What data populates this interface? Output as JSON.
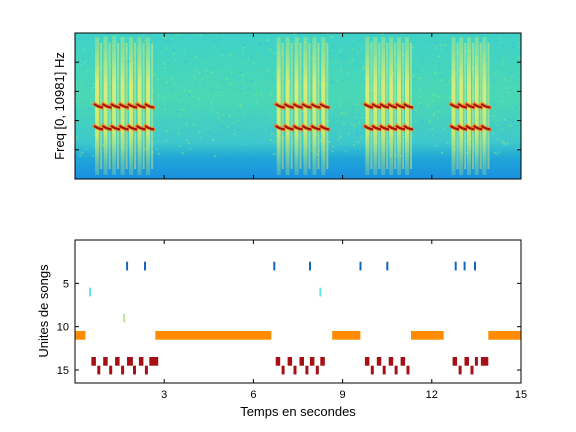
{
  "chart_data": [
    {
      "type": "heatmap",
      "title": "",
      "xlabel": "",
      "ylabel": "Freq [0, 10981] Hz",
      "yticks": [],
      "xticks": [],
      "xlim": [
        0,
        15
      ],
      "colormap": "jet",
      "content": "spectrogram",
      "call_groups": [
        {
          "start": 0.6,
          "end": 2.6,
          "count": 7
        },
        {
          "start": 6.7,
          "end": 8.5,
          "count": 6
        },
        {
          "start": 9.7,
          "end": 11.3,
          "count": 6
        },
        {
          "start": 12.6,
          "end": 13.9,
          "count": 5
        }
      ],
      "bands": [
        {
          "name": "harmonic-upper",
          "freq_fraction": 0.5
        },
        {
          "name": "harmonic-lower",
          "freq_fraction": 0.35
        }
      ]
    },
    {
      "type": "scatter",
      "title": "",
      "xlabel": "Temps en secondes",
      "ylabel": "Unites de songs",
      "xlim": [
        0,
        15
      ],
      "ylim": [
        16.5,
        0
      ],
      "xticks": [
        "3",
        "6",
        "9",
        "12",
        "15"
      ],
      "yticks": [
        "5",
        "10",
        "15"
      ],
      "series": [
        {
          "color": "#1565c0",
          "segments": [
            {
              "unit": 3,
              "start": 1.72,
              "end": 1.78
            },
            {
              "unit": 3,
              "start": 2.32,
              "end": 2.38
            },
            {
              "unit": 3,
              "start": 6.67,
              "end": 6.73
            },
            {
              "unit": 3,
              "start": 7.87,
              "end": 7.93
            },
            {
              "unit": 3,
              "start": 9.57,
              "end": 9.63
            },
            {
              "unit": 3,
              "start": 10.47,
              "end": 10.53
            },
            {
              "unit": 3,
              "start": 12.77,
              "end": 12.83
            },
            {
              "unit": 3,
              "start": 13.07,
              "end": 13.13
            },
            {
              "unit": 3,
              "start": 13.42,
              "end": 13.48
            }
          ]
        },
        {
          "color": "#5fe6e6",
          "segments": [
            {
              "unit": 6,
              "start": 0.47,
              "end": 0.53
            },
            {
              "unit": 6,
              "start": 8.22,
              "end": 8.28
            }
          ]
        },
        {
          "color": "#b8e69a",
          "segments": [
            {
              "unit": 9,
              "start": 1.62,
              "end": 1.68
            }
          ]
        },
        {
          "color": "#ff8c00",
          "segments": [
            {
              "unit": 11,
              "start": 0.0,
              "end": 0.35
            },
            {
              "unit": 11,
              "start": 2.7,
              "end": 6.6
            },
            {
              "unit": 11,
              "start": 8.65,
              "end": 9.6
            },
            {
              "unit": 11,
              "start": 11.3,
              "end": 12.4
            },
            {
              "unit": 11,
              "start": 13.9,
              "end": 15.0
            }
          ]
        },
        {
          "color": "#a50f15",
          "segments": [
            {
              "unit": 14,
              "start": 0.55,
              "end": 0.7
            },
            {
              "unit": 14,
              "start": 0.95,
              "end": 1.1
            },
            {
              "unit": 14,
              "start": 1.35,
              "end": 1.5
            },
            {
              "unit": 14,
              "start": 1.75,
              "end": 1.95
            },
            {
              "unit": 14,
              "start": 2.15,
              "end": 2.3
            },
            {
              "unit": 14,
              "start": 2.5,
              "end": 2.8
            },
            {
              "unit": 15,
              "start": 0.75,
              "end": 0.85
            },
            {
              "unit": 15,
              "start": 1.15,
              "end": 1.25
            },
            {
              "unit": 15,
              "start": 1.55,
              "end": 1.65
            },
            {
              "unit": 15,
              "start": 1.95,
              "end": 2.05
            },
            {
              "unit": 15,
              "start": 2.35,
              "end": 2.45
            },
            {
              "unit": 14,
              "start": 6.75,
              "end": 6.9
            },
            {
              "unit": 14,
              "start": 7.15,
              "end": 7.3
            },
            {
              "unit": 14,
              "start": 7.55,
              "end": 7.7
            },
            {
              "unit": 14,
              "start": 7.9,
              "end": 8.05
            },
            {
              "unit": 14,
              "start": 8.25,
              "end": 8.4
            },
            {
              "unit": 15,
              "start": 6.95,
              "end": 7.05
            },
            {
              "unit": 15,
              "start": 7.35,
              "end": 7.45
            },
            {
              "unit": 15,
              "start": 7.75,
              "end": 7.85
            },
            {
              "unit": 15,
              "start": 8.1,
              "end": 8.2
            },
            {
              "unit": 14,
              "start": 9.75,
              "end": 9.9
            },
            {
              "unit": 14,
              "start": 10.15,
              "end": 10.3
            },
            {
              "unit": 14,
              "start": 10.55,
              "end": 10.7
            },
            {
              "unit": 14,
              "start": 10.95,
              "end": 11.1
            },
            {
              "unit": 15,
              "start": 9.95,
              "end": 10.05
            },
            {
              "unit": 15,
              "start": 10.35,
              "end": 10.45
            },
            {
              "unit": 15,
              "start": 10.75,
              "end": 10.85
            },
            {
              "unit": 15,
              "start": 11.15,
              "end": 11.25
            },
            {
              "unit": 14,
              "start": 12.7,
              "end": 12.85
            },
            {
              "unit": 14,
              "start": 13.1,
              "end": 13.25
            },
            {
              "unit": 14,
              "start": 13.45,
              "end": 13.55
            },
            {
              "unit": 14,
              "start": 13.65,
              "end": 13.9
            },
            {
              "unit": 15,
              "start": 12.9,
              "end": 13.0
            },
            {
              "unit": 15,
              "start": 13.3,
              "end": 13.4
            }
          ]
        }
      ]
    }
  ]
}
